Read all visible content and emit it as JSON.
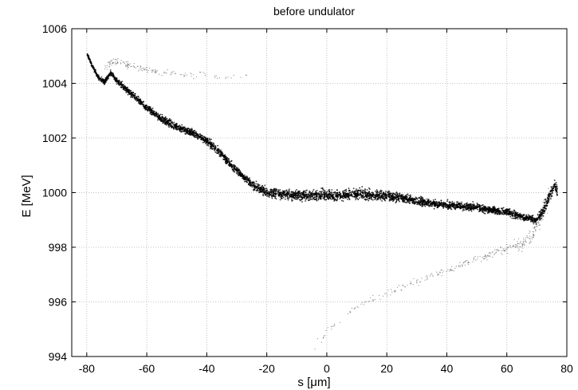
{
  "chart_data": {
    "type": "scatter",
    "title": "before undulator",
    "xlabel": "s [μm]",
    "ylabel": "E [MeV]",
    "xlim": [
      -85,
      80
    ],
    "ylim": [
      994,
      1006
    ],
    "xticks": [
      -80,
      -60,
      -40,
      -20,
      0,
      20,
      40,
      60,
      80
    ],
    "yticks": [
      994,
      996,
      998,
      1000,
      1002,
      1004,
      1006
    ],
    "grid": true,
    "legend": "none",
    "colors": {
      "points": "#000000",
      "grid": "#b0b0b0",
      "axes": "#000000"
    },
    "series": [
      {
        "role": "core",
        "x": [
          -80,
          -78,
          -76,
          -74,
          -72,
          -70,
          -65,
          -60,
          -55,
          -50,
          -45,
          -40,
          -35,
          -30,
          -25,
          -22,
          -20,
          -15,
          -10,
          -5,
          0,
          5,
          10,
          15,
          20,
          25,
          30,
          35,
          40,
          45,
          50,
          55,
          60,
          65,
          68,
          70,
          72,
          74,
          76,
          77
        ],
        "y": [
          1005.1,
          1004.6,
          1004.2,
          1004.05,
          1004.4,
          1004.1,
          1003.6,
          1003.1,
          1002.7,
          1002.4,
          1002.2,
          1001.9,
          1001.4,
          1000.8,
          1000.3,
          1000.1,
          1000.0,
          999.95,
          999.9,
          999.9,
          999.9,
          999.9,
          999.95,
          999.9,
          999.9,
          999.8,
          999.7,
          999.6,
          999.55,
          999.5,
          999.45,
          999.35,
          999.3,
          999.1,
          999.05,
          999.0,
          999.3,
          999.8,
          1000.3,
          1000.0
        ],
        "spread": [
          0.05,
          0.06,
          0.07,
          0.08,
          0.08,
          0.1,
          0.1,
          0.1,
          0.12,
          0.12,
          0.12,
          0.12,
          0.12,
          0.12,
          0.12,
          0.15,
          0.15,
          0.16,
          0.16,
          0.17,
          0.17,
          0.17,
          0.17,
          0.17,
          0.15,
          0.14,
          0.14,
          0.12,
          0.12,
          0.12,
          0.12,
          0.12,
          0.12,
          0.12,
          0.12,
          0.12,
          0.15,
          0.18,
          0.2,
          0.2
        ],
        "density": 55
      },
      {
        "role": "upper-halo",
        "x": [
          -74,
          -72,
          -70,
          -65,
          -60,
          -55,
          -50,
          -45,
          -40,
          -35,
          -30,
          -25
        ],
        "y": [
          1004.5,
          1004.8,
          1004.8,
          1004.65,
          1004.5,
          1004.4,
          1004.35,
          1004.3,
          1004.3,
          1004.25,
          1004.25,
          1004.3
        ],
        "spread": [
          0.15,
          0.12,
          0.12,
          0.12,
          0.1,
          0.1,
          0.1,
          0.1,
          0.1,
          0.1,
          0.1,
          0.1
        ],
        "density": [
          14,
          14,
          12,
          9,
          7,
          5,
          4,
          3,
          2,
          2,
          1,
          1
        ]
      },
      {
        "role": "lower-tail",
        "x": [
          -5,
          0,
          5,
          10,
          15,
          20,
          25,
          30,
          35,
          40,
          45,
          50,
          55,
          60,
          65,
          68,
          70,
          72,
          74
        ],
        "y": [
          994.3,
          994.9,
          995.4,
          995.8,
          996.1,
          996.3,
          996.55,
          996.75,
          996.95,
          997.15,
          997.35,
          997.55,
          997.75,
          997.95,
          998.1,
          998.4,
          998.8,
          999.3,
          999.8
        ],
        "spread": [
          0.2,
          0.15,
          0.12,
          0.12,
          0.12,
          0.12,
          0.12,
          0.12,
          0.12,
          0.12,
          0.12,
          0.12,
          0.12,
          0.15,
          0.2,
          0.25,
          0.3,
          0.35,
          0.35
        ],
        "density": [
          3,
          3,
          3,
          4,
          4,
          5,
          5,
          6,
          6,
          7,
          8,
          9,
          10,
          14,
          20,
          25,
          25,
          22,
          18
        ]
      }
    ]
  }
}
